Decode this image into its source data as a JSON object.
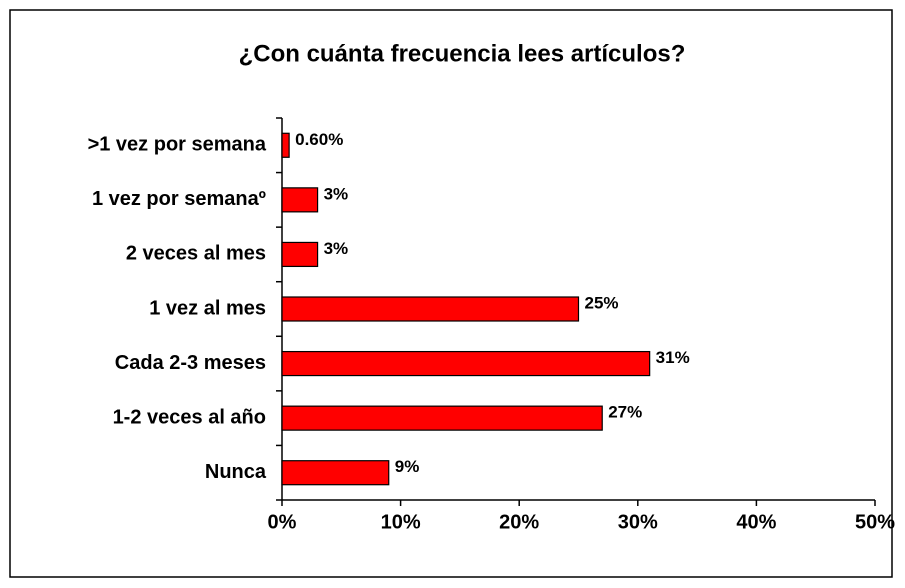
{
  "chart_data": {
    "type": "bar",
    "orientation": "horizontal",
    "title": "¿Con cuánta frecuencia lees artículos?",
    "categories": [
      ">1 vez por semana",
      "1 vez por semanaº",
      "2 veces al mes",
      "1 vez al mes",
      "Cada 2-3 meses",
      "1-2 veces al año",
      "Nunca"
    ],
    "values": [
      0.6,
      3,
      3,
      25,
      31,
      27,
      9
    ],
    "value_labels": [
      "0.60%",
      "3%",
      "3%",
      "25%",
      "31%",
      "27%",
      "9%"
    ],
    "color": "#ff0000",
    "xlim": [
      0,
      50
    ],
    "xticks": [
      {
        "value": 0,
        "label": "0%"
      },
      {
        "value": 10,
        "label": "10%"
      },
      {
        "value": 20,
        "label": "20%"
      },
      {
        "value": 30,
        "label": "30%"
      },
      {
        "value": 40,
        "label": "40%"
      },
      {
        "value": 50,
        "label": "50%"
      }
    ]
  }
}
